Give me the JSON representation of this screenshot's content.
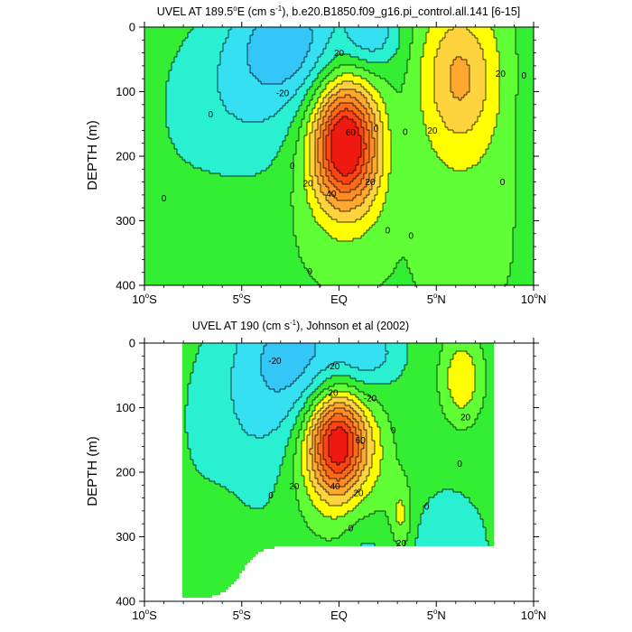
{
  "chart_data": [
    {
      "type": "contour",
      "title_main": "UVEL AT 189.5",
      "title_sup_deg": "o",
      "title_after_deg": "E (cm s",
      "title_sup_unit": "-1",
      "title_tail": "), b.e20.B1850.f09_g16.pi_control.all.141 [6-15]",
      "ylabel": "DEPTH (m)",
      "xlim": [
        -10,
        10
      ],
      "ylim": [
        0,
        400
      ],
      "y_inverted": true,
      "x_ticks": [
        {
          "value": -10,
          "label": "10",
          "deg": "o",
          "hemi": "S"
        },
        {
          "value": -5,
          "label": "5",
          "deg": "o",
          "hemi": "S"
        },
        {
          "value": 0,
          "label": "EQ",
          "deg": "",
          "hemi": ""
        },
        {
          "value": 5,
          "label": "5",
          "deg": "o",
          "hemi": "N"
        },
        {
          "value": 10,
          "label": "10",
          "deg": "o",
          "hemi": "N"
        }
      ],
      "y_ticks": [
        0,
        100,
        200,
        300,
        400
      ],
      "core": {
        "lat": 0.3,
        "depth": 175,
        "max": 75
      },
      "contour_labels": [
        {
          "text": "0",
          "lat": -6.6,
          "depth": 135
        },
        {
          "text": "-20",
          "lat": -2.9,
          "depth": 102
        },
        {
          "text": "20",
          "lat": 0.0,
          "depth": 40
        },
        {
          "text": "0",
          "lat": 1.9,
          "depth": 157
        },
        {
          "text": "60",
          "lat": 0.6,
          "depth": 163
        },
        {
          "text": "0",
          "lat": -2.4,
          "depth": 215
        },
        {
          "text": "20",
          "lat": -1.6,
          "depth": 242
        },
        {
          "text": "40",
          "lat": -0.4,
          "depth": 258
        },
        {
          "text": "20",
          "lat": 1.6,
          "depth": 240
        },
        {
          "text": "0",
          "lat": 3.4,
          "depth": 162
        },
        {
          "text": "20",
          "lat": 4.8,
          "depth": 160
        },
        {
          "text": "20",
          "lat": 8.3,
          "depth": 72
        },
        {
          "text": "0",
          "lat": 9.5,
          "depth": 75
        },
        {
          "text": "0",
          "lat": 8.4,
          "depth": 240
        },
        {
          "text": "0",
          "lat": -9.0,
          "depth": 265
        },
        {
          "text": "0",
          "lat": 2.5,
          "depth": 315
        },
        {
          "text": "0",
          "lat": 3.7,
          "depth": 323
        },
        {
          "text": "0",
          "lat": -1.5,
          "depth": 378
        }
      ]
    },
    {
      "type": "contour",
      "title_main": "UVEL AT 190 (cm s",
      "title_sup_unit": "-1",
      "title_tail": "), Johnson et al (2002)",
      "ylabel": "DEPTH (m)",
      "xlim": [
        -10,
        10
      ],
      "ylim": [
        0,
        400
      ],
      "y_inverted": true,
      "x_ticks": [
        {
          "value": -10,
          "label": "10",
          "deg": "o",
          "hemi": "S"
        },
        {
          "value": -5,
          "label": "5",
          "deg": "o",
          "hemi": "S"
        },
        {
          "value": 0,
          "label": "EQ",
          "deg": "",
          "hemi": ""
        },
        {
          "value": 5,
          "label": "5",
          "deg": "o",
          "hemi": "N"
        },
        {
          "value": 10,
          "label": "10",
          "deg": "o",
          "hemi": "N"
        }
      ],
      "y_ticks": [
        0,
        100,
        200,
        300,
        400
      ],
      "data_lon_range": [
        -8,
        8
      ],
      "core": {
        "lat": 0.0,
        "depth": 150,
        "max": 88
      },
      "contour_labels": [
        {
          "text": "-20",
          "lat": -3.3,
          "depth": 27
        },
        {
          "text": "-20",
          "lat": -0.3,
          "depth": 36
        },
        {
          "text": "-20",
          "lat": 1.6,
          "depth": 85
        },
        {
          "text": "20",
          "lat": -0.3,
          "depth": 77
        },
        {
          "text": "0",
          "lat": 2.8,
          "depth": 135
        },
        {
          "text": "20",
          "lat": 6.5,
          "depth": 115
        },
        {
          "text": "60",
          "lat": 1.1,
          "depth": 150
        },
        {
          "text": "0",
          "lat": 6.2,
          "depth": 187
        },
        {
          "text": "0",
          "lat": -3.5,
          "depth": 236
        },
        {
          "text": "20",
          "lat": -2.3,
          "depth": 222
        },
        {
          "text": "40",
          "lat": -0.2,
          "depth": 222
        },
        {
          "text": "20",
          "lat": 1.0,
          "depth": 232
        },
        {
          "text": "0",
          "lat": 4.5,
          "depth": 253
        },
        {
          "text": "0",
          "lat": 0.6,
          "depth": 287
        },
        {
          "text": "20",
          "lat": 3.2,
          "depth": 310
        }
      ]
    }
  ],
  "colors": {
    "lt_m30": "#39adff",
    "m30_m20": "#33c6f7",
    "m20_m10": "#36e0f3",
    "m10_0": "#28f0d0",
    "0_10": "#33ee33",
    "10_20": "#60ff35",
    "20_30": "#ffff00",
    "30_40": "#ffd33d",
    "40_50": "#ffa830",
    "50_60": "#ff8c24",
    "60_70": "#ff6a18",
    "70_80": "#ff4414",
    "gt_80": "#ee1a10",
    "contour_line": "#000000"
  }
}
